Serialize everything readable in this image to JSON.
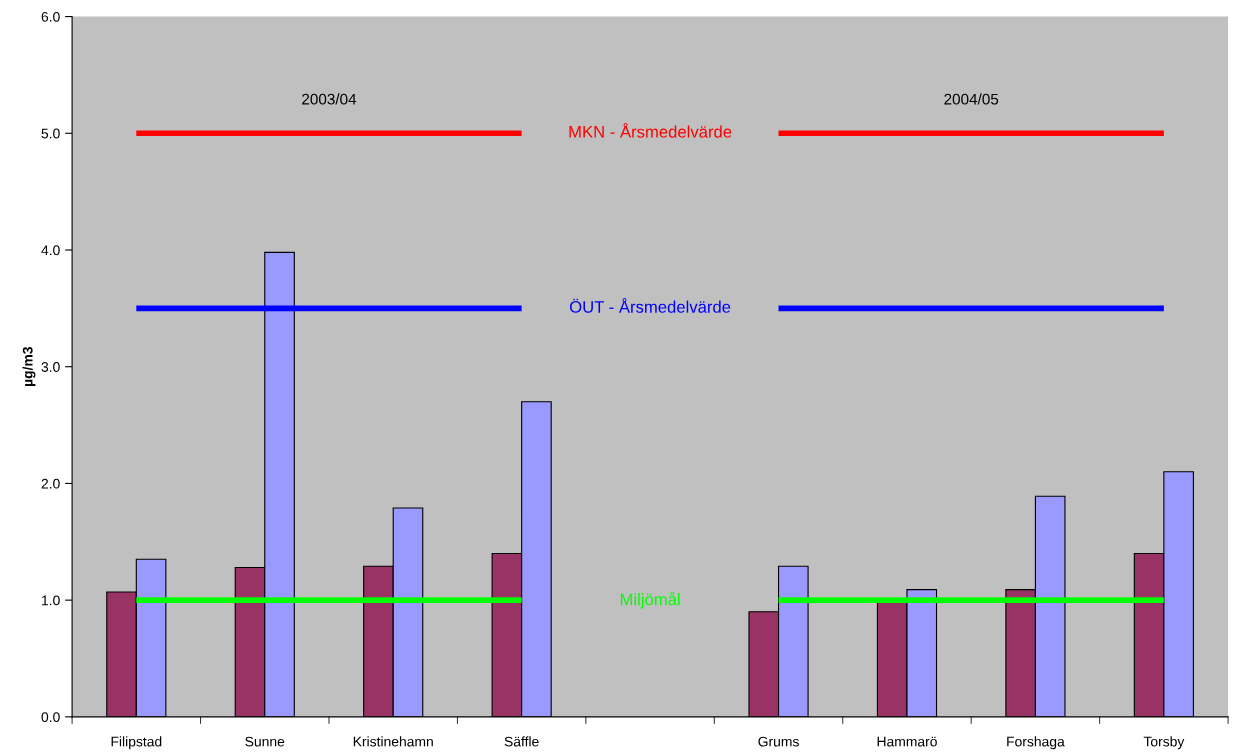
{
  "chart_data": {
    "type": "bar",
    "ylabel": "µg/m3",
    "categories": [
      "Filipstad",
      "Sunne",
      "Kristinehamn",
      "Säffle",
      null,
      "Grums",
      "Hammarö",
      "Forshaga",
      "Torsby"
    ],
    "series": [
      {
        "color": "#993366",
        "values": [
          1.07,
          1.28,
          1.29,
          1.4,
          null,
          0.9,
          1.0,
          1.09,
          1.4
        ]
      },
      {
        "color": "#9999ff",
        "values": [
          1.35,
          3.98,
          1.79,
          2.7,
          null,
          1.29,
          1.09,
          1.89,
          2.1
        ]
      },
      {
        "type": "line",
        "color": "#ff0000",
        "values": [
          5.0,
          5.0,
          5.0,
          5.0,
          null,
          5.0,
          5.0,
          5.0,
          5.0
        ]
      },
      {
        "type": "line",
        "color": "#0000ff",
        "values": [
          3.5,
          3.5,
          3.5,
          3.5,
          null,
          3.5,
          3.5,
          3.5,
          3.5
        ]
      },
      {
        "type": "line",
        "color": "#00ff00",
        "values": [
          1.0,
          1.0,
          1.0,
          1.0,
          null,
          1.0,
          1.0,
          1.0,
          1.0
        ]
      }
    ],
    "annotations": [
      "2003/04",
      "2004/05",
      "MKN - Årsmedelvärde",
      "ÖUT - Årsmedelvärde",
      "Miljömål"
    ],
    "ylim": [
      0,
      6
    ],
    "yticks": [
      {
        "value": 0,
        "label": "0.0"
      },
      {
        "value": 1,
        "label": "1.0"
      },
      {
        "value": 2,
        "label": "2.0"
      },
      {
        "value": 3,
        "label": "3.0"
      },
      {
        "value": 4,
        "label": "4.0"
      },
      {
        "value": 5,
        "label": "5.0"
      },
      {
        "value": 6,
        "label": "6.0"
      }
    ],
    "grid": false,
    "legend": false
  }
}
